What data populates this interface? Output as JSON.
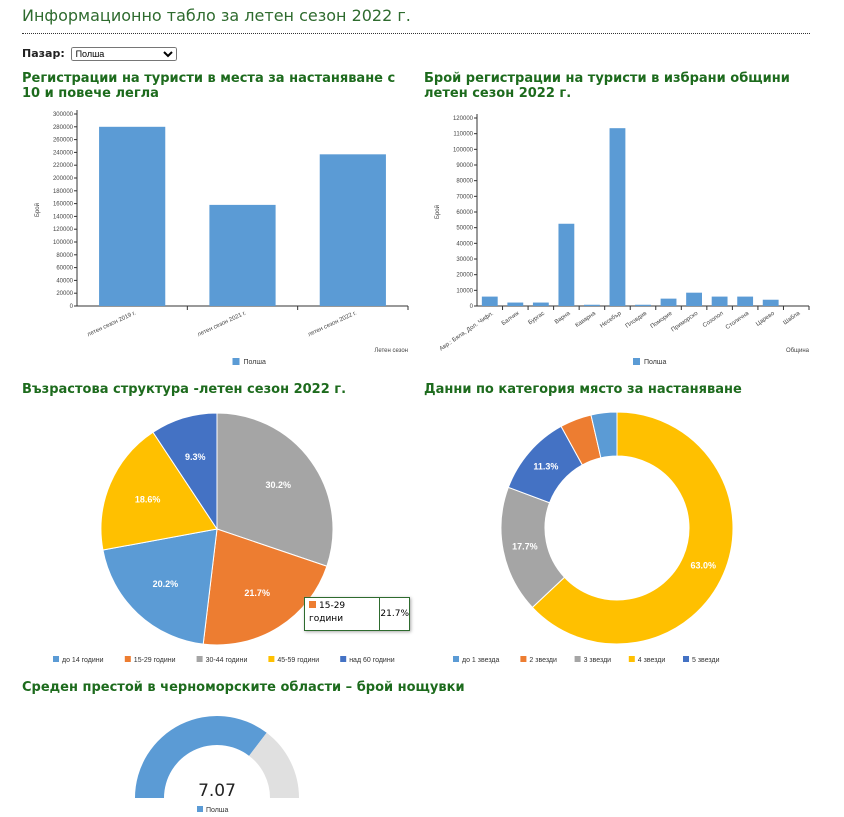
{
  "header": {
    "title": "Информационно табло за летен сезон 2022 г.",
    "market_label": "Пазар:",
    "market_value": "Полша"
  },
  "colors": {
    "blue": "#5b9bd5",
    "orange": "#ed7d31",
    "gray": "#a5a5a5",
    "yellow": "#ffc000",
    "darkblue": "#4472c4",
    "gauge_rest": "#e0e0e0"
  },
  "chart_data": [
    {
      "type": "bar",
      "title": "Регистрации на туристи в места за настаняване с 10 и повече легла",
      "categories": [
        "летен сезон 2019 г.",
        "летен сезон 2021 г.",
        "летен сезон 2022 г."
      ],
      "series": [
        {
          "name": "Полша",
          "values": [
            280000,
            158000,
            237000
          ]
        }
      ],
      "xlabel": "Летен сезон",
      "ylabel": "Брой",
      "ylim": [
        0,
        300000
      ],
      "yticks": [
        0,
        20000,
        40000,
        60000,
        80000,
        100000,
        120000,
        140000,
        160000,
        180000,
        200000,
        220000,
        240000,
        260000,
        280000,
        300000
      ],
      "legend": "bottom"
    },
    {
      "type": "bar",
      "title": "Брой регистрации на туристи в избрани общини летен сезон 2022 г.",
      "categories": [
        "Авр.: Бяла, Дол. Чифл.",
        "Балчик",
        "Бургас",
        "Варна",
        "Каварна",
        "Несебър",
        "Пловдив",
        "Поморие",
        "Приморско",
        "Созопол",
        "Столична",
        "Царево",
        "Шабла"
      ],
      "series": [
        {
          "name": "Полша",
          "values": [
            6000,
            2200,
            2200,
            52500,
            800,
            113500,
            800,
            4700,
            8500,
            6000,
            6000,
            4000,
            0
          ]
        }
      ],
      "xlabel": "Община",
      "ylabel": "Брой",
      "ylim": [
        0,
        120000
      ],
      "yticks": [
        0,
        10000,
        20000,
        30000,
        40000,
        50000,
        60000,
        70000,
        80000,
        90000,
        100000,
        110000,
        120000
      ],
      "legend": "bottom"
    },
    {
      "type": "pie",
      "title": "Възрастова структура -летен сезон 2022 г.",
      "slices": [
        {
          "label": "30-44 години",
          "value": 30.2,
          "color": "#a5a5a5",
          "text": "30.2%"
        },
        {
          "label": "15-29 години",
          "value": 21.7,
          "color": "#ed7d31",
          "text": "21.7%"
        },
        {
          "label": "до 14 години",
          "value": 20.2,
          "color": "#5b9bd5",
          "text": "20.2%"
        },
        {
          "label": "45-59 години",
          "value": 18.6,
          "color": "#ffc000",
          "text": "18.6%"
        },
        {
          "label": "над 60 години",
          "value": 9.3,
          "color": "#4472c4",
          "text": "9.3%"
        }
      ],
      "legend": [
        "до 14 години",
        "15-29 години",
        "30-44 години",
        "45-59 години",
        "над 60 години"
      ],
      "legend_colors": [
        "#5b9bd5",
        "#ed7d31",
        "#a5a5a5",
        "#ffc000",
        "#4472c4"
      ],
      "tooltip": {
        "label": "15-29 години",
        "value": "21.7%"
      }
    },
    {
      "type": "pie",
      "title": "Данни по категория място за настаняване",
      "donut": true,
      "slices": [
        {
          "label": "4 звезди",
          "value": 63.0,
          "color": "#ffc000",
          "text": "63.0%"
        },
        {
          "label": "3 звезди",
          "value": 17.7,
          "color": "#a5a5a5",
          "text": "17.7%"
        },
        {
          "label": "5 звезди",
          "value": 11.3,
          "color": "#4472c4",
          "text": "11.3%"
        },
        {
          "label": "2 звезди",
          "value": 4.4,
          "color": "#ed7d31",
          "text": ""
        },
        {
          "label": "до 1 звезда",
          "value": 3.6,
          "color": "#5b9bd5",
          "text": ""
        }
      ],
      "legend": [
        "до 1 звезда",
        "2 звезди",
        "3 звезди",
        "4 звезди",
        "5 звезди"
      ],
      "legend_colors": [
        "#5b9bd5",
        "#ed7d31",
        "#a5a5a5",
        "#ffc000",
        "#4472c4"
      ]
    },
    {
      "type": "gauge",
      "title": "Среден престой в черноморските области – брой нощувки",
      "value": 7.07,
      "value_text": "7.07",
      "max": 10,
      "legend": "Полша"
    }
  ]
}
